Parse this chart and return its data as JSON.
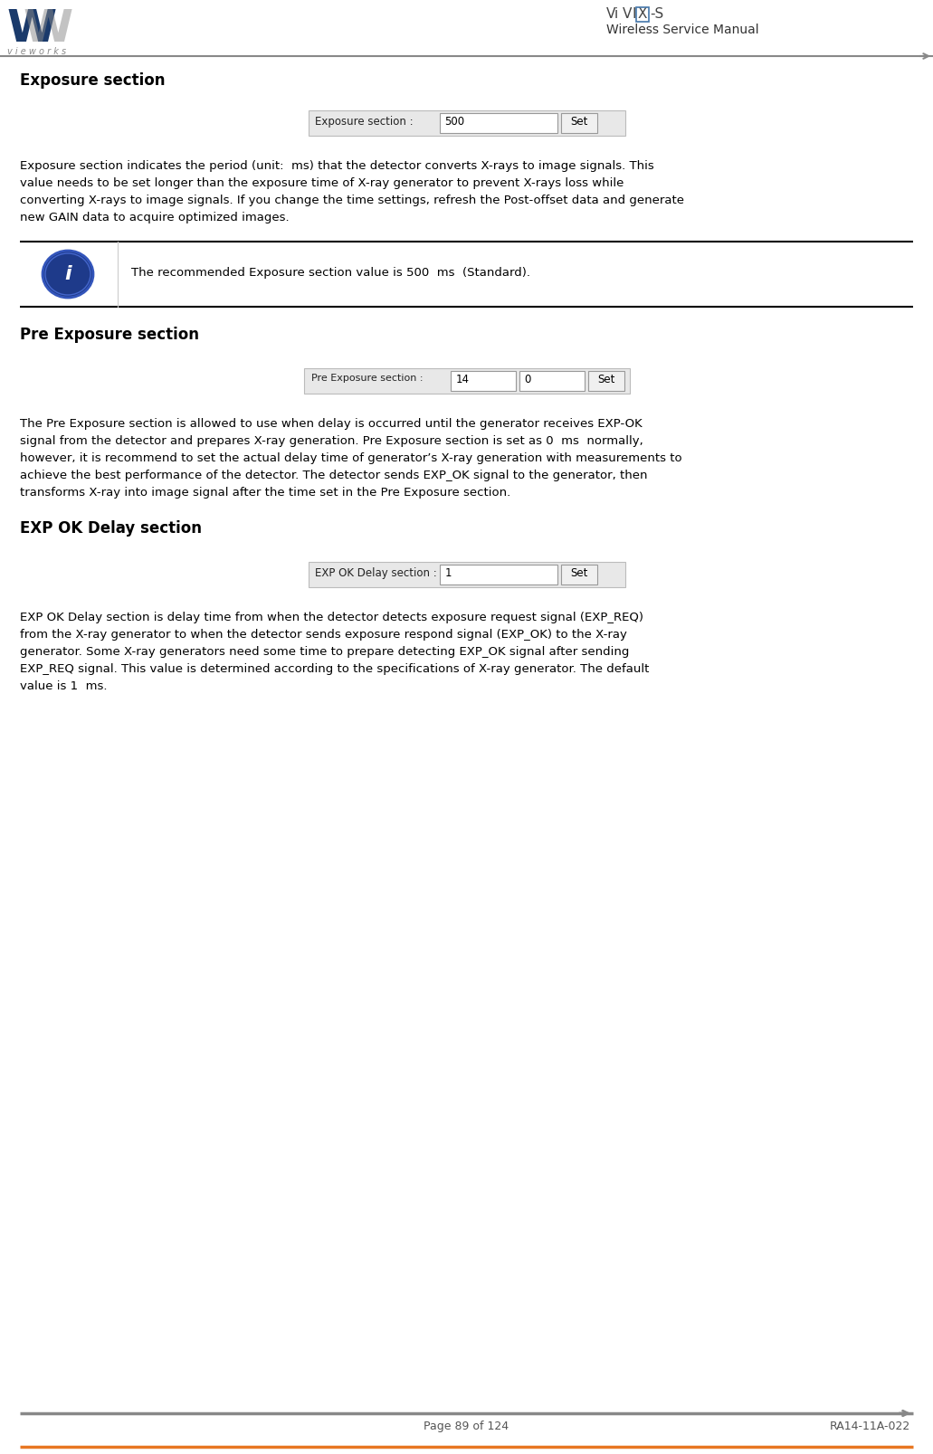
{
  "page_width": 10.31,
  "page_height": 16.07,
  "dpi": 100,
  "bg_color": "#ffffff",
  "header": {
    "title": "Wireless Service Manual",
    "vivix_text": "ViVIX",
    "vivix_suffix": "-S"
  },
  "footer": {
    "left": "Page 89 of 124",
    "right": "RA14-11A-022",
    "line_color": "#888888"
  },
  "section1": {
    "heading": "Exposure section",
    "ui_label": "Exposure section :",
    "ui_value": "500",
    "ui_button": "Set",
    "body_lines": [
      "Exposure section indicates the period (unit:  ms) that the detector converts X-rays to image signals. This",
      "value needs to be set longer than the exposure time of X-ray generator to prevent X-rays loss while",
      "converting X-rays to image signals. If you change the time settings, refresh the Post-offset data and generate",
      "new GAIN data to acquire optimized images."
    ],
    "note": "The recommended Exposure section value is 500  ms  (Standard)."
  },
  "section2": {
    "heading": "Pre Exposure section",
    "ui_label": "Pre Exposure section :",
    "ui_value1": "14",
    "ui_value2": "0",
    "ui_button": "Set",
    "body_lines": [
      "The Pre Exposure section is allowed to use when delay is occurred until the generator receives EXP-OK",
      "signal from the detector and prepares X-ray generation. Pre Exposure section is set as 0  ms  normally,",
      "however, it is recommend to set the actual delay time of generator’s X-ray generation with measurements to",
      "achieve the best performance of the detector. The detector sends EXP_OK signal to the generator, then",
      "transforms X-ray into image signal after the time set in the Pre Exposure section."
    ]
  },
  "section3": {
    "heading": "EXP OK Delay section",
    "ui_label": "EXP OK Delay section :",
    "ui_value": "1",
    "ui_button": "Set",
    "body_lines": [
      "EXP OK Delay section is delay time from when the detector detects exposure request signal (EXP_REQ)",
      "from the X-ray generator to when the detector sends exposure respond signal (EXP_OK) to the X-ray",
      "generator. Some X-ray generators need some time to prepare detecting EXP_OK signal after sending",
      "EXP_REQ signal. This value is determined according to the specifications of X-ray generator. The default",
      "value is 1  ms."
    ]
  },
  "colors": {
    "heading": "#000000",
    "body_text": "#000000",
    "ui_bg": "#e8e8e8",
    "info_circle_fill": "#1e3a8a",
    "info_circle_border": "#3355bb",
    "orange_line": "#e87722"
  },
  "fonts": {
    "heading_size": 12,
    "body_size": 9.5,
    "ui_size": 8.5,
    "note_size": 9.5,
    "footer_size": 9,
    "header_title_size": 10
  }
}
